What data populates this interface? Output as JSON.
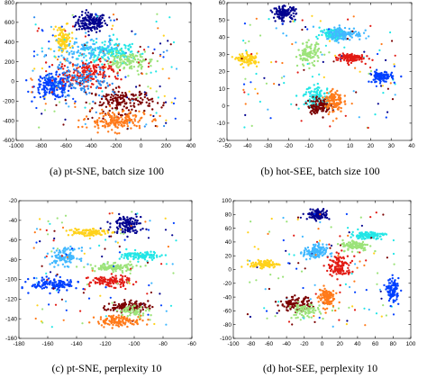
{
  "colors": {
    "darkblue": "#00008f",
    "blue": "#0040ff",
    "azure": "#2d8cf0",
    "lightblue": "#41b8ff",
    "cyan": "#22e6e6",
    "lightgreen": "#9ce37a",
    "yellow": "#ffd21c",
    "orange": "#ff7a1a",
    "red": "#e21b14",
    "darkred": "#7a0000"
  },
  "chart_data": [
    {
      "type": "scatter",
      "caption": "(a) pt-SNE, batch size 100",
      "xlim": [
        -1000,
        400
      ],
      "ylim": [
        -600,
        800
      ],
      "xticks": [
        -1000,
        -800,
        -600,
        -400,
        -200,
        0,
        200,
        400
      ],
      "yticks": [
        -600,
        -400,
        -200,
        0,
        200,
        400,
        600,
        800
      ],
      "clusters": [
        {
          "color": "darkblue",
          "cx": -400,
          "cy": 600,
          "rx": 110,
          "ry": 90,
          "n": 160
        },
        {
          "color": "yellow",
          "cx": -620,
          "cy": 420,
          "rx": 55,
          "ry": 110,
          "n": 110
        },
        {
          "color": "blue",
          "cx": -700,
          "cy": -50,
          "rx": 140,
          "ry": 110,
          "n": 190
        },
        {
          "color": "cyan",
          "cx": -250,
          "cy": 300,
          "rx": 200,
          "ry": 100,
          "n": 150
        },
        {
          "color": "lightgreen",
          "cx": -100,
          "cy": 200,
          "rx": 180,
          "ry": 90,
          "n": 120
        },
        {
          "color": "red",
          "cx": -430,
          "cy": 80,
          "rx": 230,
          "ry": 120,
          "n": 170
        },
        {
          "color": "lightblue",
          "cx": -450,
          "cy": 320,
          "rx": 220,
          "ry": 120,
          "n": 110
        },
        {
          "color": "darkred",
          "cx": -150,
          "cy": -200,
          "rx": 220,
          "ry": 110,
          "n": 160
        },
        {
          "color": "orange",
          "cx": -200,
          "cy": -400,
          "rx": 220,
          "ry": 90,
          "n": 170
        },
        {
          "color": "azure",
          "cx": -480,
          "cy": 0,
          "rx": 220,
          "ry": 160,
          "n": 120
        }
      ]
    },
    {
      "type": "scatter",
      "caption": "(b) hot-SEE, batch size 100",
      "xlim": [
        -50,
        40
      ],
      "ylim": [
        -20,
        60
      ],
      "xticks": [
        -50,
        -40,
        -30,
        -20,
        -10,
        0,
        10,
        20,
        30,
        40
      ],
      "yticks": [
        -20,
        -10,
        0,
        10,
        20,
        30,
        40,
        50,
        60
      ],
      "clusters": [
        {
          "color": "darkblue",
          "cx": -22,
          "cy": 54,
          "rx": 5,
          "ry": 3.5,
          "n": 120
        },
        {
          "color": "cyan",
          "cx": 2,
          "cy": 42,
          "rx": 6,
          "ry": 3,
          "n": 110
        },
        {
          "color": "lightblue",
          "cx": 7,
          "cy": 42,
          "rx": 8,
          "ry": 3.5,
          "n": 110
        },
        {
          "color": "yellow",
          "cx": -40,
          "cy": 27,
          "rx": 4.5,
          "ry": 3,
          "n": 100
        },
        {
          "color": "lightgreen",
          "cx": -10,
          "cy": 30,
          "rx": 5,
          "ry": 6,
          "n": 110
        },
        {
          "color": "red",
          "cx": 10,
          "cy": 28,
          "rx": 6,
          "ry": 2.5,
          "n": 110
        },
        {
          "color": "blue",
          "cx": 25,
          "cy": 17,
          "rx": 5,
          "ry": 3,
          "n": 100
        },
        {
          "color": "cyan",
          "cx": -6,
          "cy": 5,
          "rx": 6,
          "ry": 6,
          "n": 110
        },
        {
          "color": "darkred",
          "cx": -5,
          "cy": 0,
          "rx": 5,
          "ry": 4,
          "n": 100
        },
        {
          "color": "orange",
          "cx": 2,
          "cy": 3,
          "rx": 4,
          "ry": 6,
          "n": 110
        }
      ]
    },
    {
      "type": "scatter",
      "caption": "(c) pt-SNE, perplexity 10",
      "xlim": [
        -180,
        -60
      ],
      "ylim": [
        -160,
        -20
      ],
      "xticks": [
        -180,
        -160,
        -140,
        -120,
        -100,
        -80,
        -60
      ],
      "yticks": [
        -160,
        -140,
        -120,
        -100,
        -80,
        -60,
        -40,
        -20
      ],
      "clusters": [
        {
          "color": "darkblue",
          "cx": -105,
          "cy": -44,
          "rx": 9,
          "ry": 8,
          "n": 120
        },
        {
          "color": "yellow",
          "cx": -133,
          "cy": -52,
          "rx": 13,
          "ry": 4,
          "n": 100
        },
        {
          "color": "cyan",
          "cx": -95,
          "cy": -76,
          "rx": 12,
          "ry": 4,
          "n": 110
        },
        {
          "color": "lightblue",
          "cx": -148,
          "cy": -77,
          "rx": 9,
          "ry": 8,
          "n": 110
        },
        {
          "color": "lightgreen",
          "cx": -115,
          "cy": -88,
          "rx": 15,
          "ry": 4,
          "n": 110
        },
        {
          "color": "blue",
          "cx": -155,
          "cy": -105,
          "rx": 15,
          "ry": 6,
          "n": 130
        },
        {
          "color": "red",
          "cx": -117,
          "cy": -102,
          "rx": 13,
          "ry": 5,
          "n": 110
        },
        {
          "color": "darkred",
          "cx": -105,
          "cy": -128,
          "rx": 13,
          "ry": 5,
          "n": 110
        },
        {
          "color": "orange",
          "cx": -110,
          "cy": -142,
          "rx": 15,
          "ry": 5,
          "n": 120
        },
        {
          "color": "lightgreen",
          "cx": -100,
          "cy": -132,
          "rx": 10,
          "ry": 5,
          "n": 60
        }
      ]
    },
    {
      "type": "scatter",
      "caption": "(d) hot-SEE, perplexity 10",
      "xlim": [
        -100,
        100
      ],
      "ylim": [
        -100,
        100
      ],
      "xticks": [
        -100,
        -80,
        -60,
        -40,
        -20,
        0,
        20,
        40,
        60,
        80,
        100
      ],
      "yticks": [
        -100,
        -80,
        -60,
        -40,
        -20,
        0,
        20,
        40,
        60,
        80,
        100
      ],
      "clusters": [
        {
          "color": "darkblue",
          "cx": -5,
          "cy": 80,
          "rx": 10,
          "ry": 7,
          "n": 110
        },
        {
          "color": "cyan",
          "cx": 52,
          "cy": 50,
          "rx": 17,
          "ry": 5,
          "n": 110
        },
        {
          "color": "lightblue",
          "cx": -8,
          "cy": 25,
          "rx": 12,
          "ry": 10,
          "n": 120
        },
        {
          "color": "yellow",
          "cx": -65,
          "cy": 8,
          "rx": 14,
          "ry": 5,
          "n": 100
        },
        {
          "color": "lightgreen",
          "cx": 38,
          "cy": 35,
          "rx": 14,
          "ry": 7,
          "n": 110
        },
        {
          "color": "red",
          "cx": 20,
          "cy": 5,
          "rx": 12,
          "ry": 15,
          "n": 120
        },
        {
          "color": "blue",
          "cx": 80,
          "cy": -30,
          "rx": 6,
          "ry": 15,
          "n": 100
        },
        {
          "color": "darkred",
          "cx": -30,
          "cy": -50,
          "rx": 16,
          "ry": 9,
          "n": 110
        },
        {
          "color": "orange",
          "cx": 5,
          "cy": -40,
          "rx": 8,
          "ry": 14,
          "n": 110
        },
        {
          "color": "lightgreen",
          "cx": -20,
          "cy": -60,
          "rx": 16,
          "ry": 10,
          "n": 80
        }
      ]
    }
  ]
}
